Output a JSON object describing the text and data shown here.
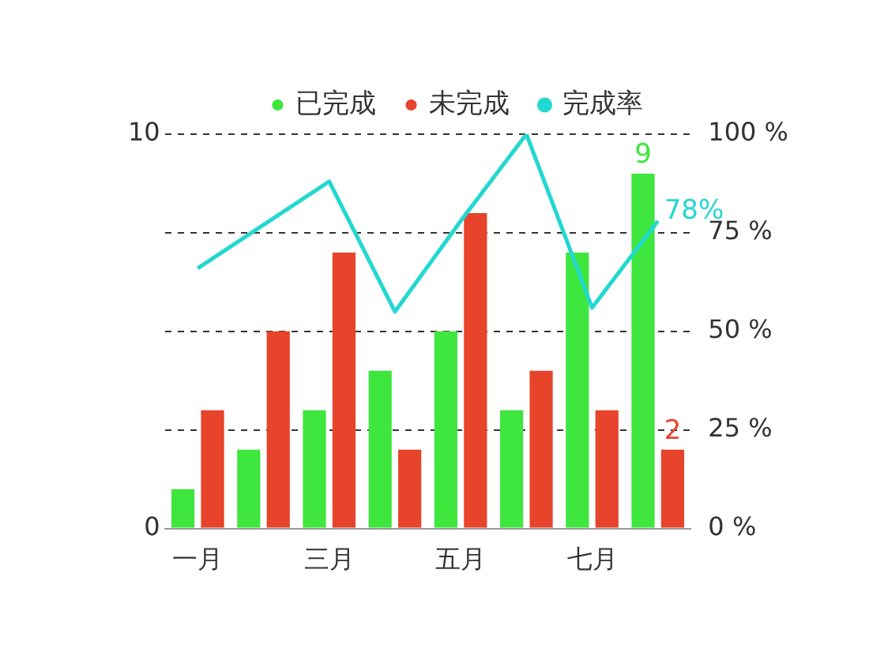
{
  "chart_data": {
    "type": "bar",
    "categories": [
      "一月",
      null,
      "三月",
      null,
      "五月",
      null,
      "七月",
      null
    ],
    "series": [
      {
        "name": "已完成",
        "color": "#3ee63e",
        "values": [
          1,
          2,
          3,
          4,
          5,
          3,
          7,
          9
        ],
        "value_labels": [
          null,
          null,
          null,
          null,
          null,
          null,
          null,
          "9"
        ]
      },
      {
        "name": "未完成",
        "color": "#e8432b",
        "values": [
          3,
          5,
          7,
          2,
          8,
          4,
          3,
          2
        ],
        "value_labels": [
          null,
          null,
          null,
          null,
          null,
          null,
          null,
          "2"
        ]
      },
      {
        "name": "完成率",
        "type": "line",
        "axis": "y2",
        "color": "#22d8d0",
        "marker": "none",
        "values": [
          66,
          77,
          88,
          55,
          78,
          100,
          56,
          78
        ],
        "value_labels": [
          null,
          null,
          null,
          null,
          null,
          null,
          null,
          "78%"
        ]
      }
    ],
    "ylim": [
      0,
      10
    ],
    "yticks": [
      0,
      {
        "value": 2.5,
        "label": null
      },
      {
        "value": 5,
        "label": null
      },
      {
        "value": 7.5,
        "label": null
      },
      10
    ],
    "y2lim": [
      0,
      100
    ],
    "y2ticks": [
      {
        "value": 0,
        "label": "0 %"
      },
      {
        "value": 25,
        "label": "25 %"
      },
      {
        "value": 50,
        "label": "50 %"
      },
      {
        "value": 75,
        "label": "75 %"
      },
      {
        "value": 100,
        "label": "100 %"
      }
    ],
    "grid": "y",
    "legend": "top"
  }
}
